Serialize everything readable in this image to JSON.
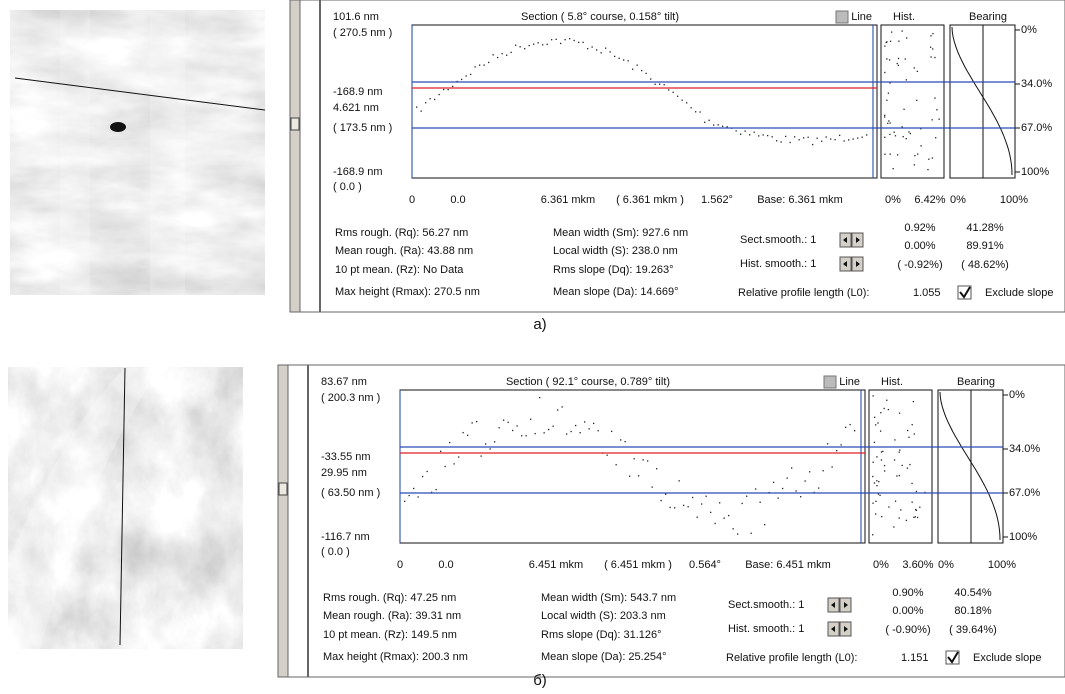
{
  "panels": [
    {
      "label": "а)",
      "section_title": "Section ( 5.8° course,  0.158° tilt)",
      "line": "Line",
      "hist": "Hist.",
      "bearing": "Bearing",
      "y_labels": [
        "101.6 nm",
        "( 270.5 nm )",
        "-168.9 nm",
        "4.621 nm",
        "( 173.5 nm )",
        "-168.9 nm",
        "( 0.0 )"
      ],
      "x_labels": [
        "0",
        "0.0",
        "6.361 mkm",
        "( 6.361 mkm )",
        "1.562°",
        "Base: 6.361 mkm"
      ],
      "hist_labels": [
        "0%",
        "6.42%"
      ],
      "bearing_axis": [
        "0%",
        "100%"
      ],
      "bearing_ticks": [
        "0%",
        "34.0%",
        "67.0%",
        "100%"
      ],
      "stats_left": [
        "Rms rough.   (Rq): 56.27 nm",
        "Mean rough.  (Ra): 43.88 nm",
        "10 pt mean.  (Rz): No Data",
        "Max height (Rmax): 270.5 nm"
      ],
      "stats_mid": [
        "Mean width  (Sm): 927.6 nm",
        "Local width  (S): 238.0 nm",
        "Rms slope  (Dq): 19.263°",
        "Mean slope  (Da): 14.669°"
      ],
      "smooth": [
        "Sect.smooth.: 1",
        "Hist. smooth.: 1"
      ],
      "pct_col1": [
        "0.92%",
        "0.00%",
        "( -0.92%)"
      ],
      "pct_col2": [
        "41.28%",
        "89.91%",
        "( 48.62%)"
      ],
      "rel_length_label": "Relative profile length  (L0):",
      "rel_length": "1.055",
      "exclude": "Exclude slope"
    },
    {
      "label": "б)",
      "section_title": "Section ( 92.1° course,  0.789° tilt)",
      "line": "Line",
      "hist": "Hist.",
      "bearing": "Bearing",
      "y_labels": [
        "83.67 nm",
        "( 200.3 nm )",
        "-33.55 nm",
        "29.95 nm",
        "( 63.50 nm )",
        "-116.7 nm",
        "( 0.0 )"
      ],
      "x_labels": [
        "0",
        "0.0",
        "6.451 mkm",
        "( 6.451 mkm )",
        "0.564°",
        "Base: 6.451 mkm"
      ],
      "hist_labels": [
        "0%",
        "3.60%"
      ],
      "bearing_axis": [
        "0%",
        "100%"
      ],
      "bearing_ticks": [
        "0%",
        "34.0%",
        "67.0%",
        "100%"
      ],
      "stats_left": [
        "Rms rough.   (Rq): 47.25 nm",
        "Mean rough.  (Ra): 39.31 nm",
        "10 pt mean.  (Rz): 149.5 nm",
        "Max height (Rmax): 200.3 nm"
      ],
      "stats_mid": [
        "Mean width  (Sm): 543.7 nm",
        "Local width  (S): 203.3 nm",
        "Rms slope  (Dq): 31.126°",
        "Mean slope  (Da): 25.254°"
      ],
      "smooth": [
        "Sect.smooth.: 1",
        "Hist. smooth.: 1"
      ],
      "pct_col1": [
        "0.90%",
        "0.00%",
        "( -0.90%)"
      ],
      "pct_col2": [
        "40.54%",
        "80.18%",
        "( 39.64%)"
      ],
      "rel_length_label": "Relative profile length  (L0):",
      "rel_length": "1.151",
      "exclude": "Exclude slope"
    }
  ]
}
